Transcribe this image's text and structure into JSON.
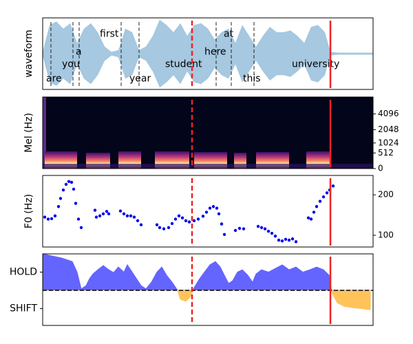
{
  "shared_x": {
    "xlim": [
      0,
      480
    ],
    "vlines": [
      {
        "x": 217,
        "style": "dashed"
      },
      {
        "x": 418,
        "style": "solid"
      }
    ],
    "color": "#ee2222"
  },
  "chart_data": [
    {
      "type": "waveform",
      "ylabel": "waveform",
      "color": "#a6c8e0",
      "ylim": [
        -1,
        1
      ],
      "x": [
        0,
        10,
        20,
        30,
        40,
        50,
        60,
        70,
        80,
        90,
        100,
        110,
        120,
        130,
        140,
        150,
        160,
        170,
        180,
        190,
        200,
        210,
        220,
        230,
        240,
        250,
        260,
        270,
        280,
        290,
        300,
        310,
        320,
        330,
        340,
        350,
        360,
        370,
        380,
        390,
        400,
        410,
        418,
        430,
        480
      ],
      "values": [
        0.05,
        0.8,
        0.9,
        0.7,
        0.85,
        0.3,
        0.7,
        0.85,
        0.6,
        0.2,
        0.05,
        0.1,
        0.7,
        0.6,
        0.1,
        0.2,
        0.5,
        0.95,
        0.8,
        0.6,
        0.85,
        0.5,
        0.8,
        0.85,
        0.7,
        0.4,
        0.6,
        0.7,
        0.3,
        0.8,
        0.5,
        0.2,
        0.5,
        0.75,
        0.6,
        0.6,
        0.65,
        0.5,
        0.3,
        0.75,
        0.8,
        0.6,
        0.05,
        0.03,
        0.03
      ],
      "boundaries": [
        12,
        44,
        53,
        114,
        140,
        252,
        274,
        307
      ],
      "words": [
        {
          "text": "are",
          "x": 5,
          "y": -0.7
        },
        {
          "text": "you",
          "x": 28,
          "y": -0.3
        },
        {
          "text": "a",
          "x": 48,
          "y": 0.05
        },
        {
          "text": "first",
          "x": 83,
          "y": 0.55
        },
        {
          "text": "year",
          "x": 126,
          "y": -0.7
        },
        {
          "text": "student",
          "x": 178,
          "y": -0.3
        },
        {
          "text": "here",
          "x": 235,
          "y": 0.05
        },
        {
          "text": "at",
          "x": 263,
          "y": 0.55
        },
        {
          "text": "this",
          "x": 291,
          "y": -0.7
        },
        {
          "text": "university",
          "x": 362,
          "y": -0.3
        }
      ]
    },
    {
      "type": "spectrogram",
      "ylabel": "Mel (Hz)",
      "yscale": "mel",
      "ylim": [
        0,
        8000
      ],
      "yticks": [
        0,
        512,
        1024,
        2048,
        4096
      ]
    },
    {
      "type": "scatter",
      "ylabel": "F0 (Hz)",
      "color": "#0000ee",
      "ylim": [
        71,
        248
      ],
      "yticks": [
        100,
        200
      ],
      "x": [
        3,
        8,
        13,
        18,
        23,
        26,
        30,
        34,
        38,
        42,
        45,
        48,
        52,
        56,
        76,
        78,
        83,
        88,
        93,
        96,
        113,
        118,
        123,
        128,
        133,
        138,
        143,
        166,
        170,
        176,
        183,
        188,
        193,
        198,
        203,
        208,
        213,
        220,
        226,
        233,
        238,
        243,
        248,
        253,
        256,
        260,
        264,
        280,
        286,
        292,
        313,
        318,
        323,
        328,
        333,
        338,
        343,
        348,
        353,
        358,
        363,
        368,
        386,
        390,
        394,
        398,
        403,
        408,
        413,
        417,
        422
      ],
      "values": [
        145,
        140,
        141,
        148,
        171,
        191,
        212,
        226,
        233,
        231,
        214,
        179,
        140,
        119,
        162,
        145,
        148,
        153,
        159,
        153,
        160,
        153,
        148,
        148,
        145,
        136,
        126,
        126,
        119,
        116,
        119,
        129,
        140,
        148,
        143,
        136,
        133,
        136,
        140,
        147,
        157,
        167,
        171,
        167,
        153,
        128,
        102,
        112,
        117,
        116,
        122,
        119,
        116,
        110,
        105,
        98,
        88,
        86,
        90,
        88,
        91,
        84,
        143,
        140,
        157,
        171,
        184,
        195,
        205,
        212,
        222
      ]
    },
    {
      "type": "area",
      "pos_color": "#6464ff",
      "neg_color": "#ffc35a",
      "ylim": [
        -1.92,
        2
      ],
      "hline": 0,
      "yticks": [
        {
          "value": 1,
          "label": "HOLD"
        },
        {
          "value": -1,
          "label": "SHIFT"
        }
      ],
      "x": [
        0,
        13,
        28,
        43,
        50,
        56,
        63,
        68,
        73,
        80,
        88,
        96,
        103,
        110,
        118,
        123,
        133,
        143,
        150,
        158,
        166,
        173,
        180,
        188,
        196,
        200,
        208,
        214,
        220,
        228,
        235,
        243,
        251,
        258,
        264,
        270,
        276,
        283,
        290,
        298,
        305,
        310,
        318,
        328,
        338,
        348,
        358,
        368,
        378,
        388,
        398,
        408,
        416,
        420,
        428,
        438,
        448,
        458,
        468,
        476
      ],
      "values": [
        2,
        1.89,
        1.77,
        1.58,
        1,
        0.08,
        0.26,
        0.64,
        0.9,
        1.13,
        1.36,
        1.13,
        0.98,
        1.28,
        1,
        1.4,
        0.83,
        0.26,
        0.08,
        0.45,
        1,
        1.28,
        0.83,
        0.45,
        0,
        -0.49,
        -0.6,
        -0.38,
        0.15,
        0.64,
        1,
        1.4,
        1.58,
        1.28,
        0.83,
        0.38,
        0.53,
        1,
        1.13,
        0.83,
        0.45,
        0.9,
        1.13,
        1,
        1.2,
        1.4,
        1.13,
        1.28,
        1,
        1.13,
        1.28,
        1.13,
        0.83,
        -0.11,
        -0.68,
        -0.87,
        -0.94,
        -0.98,
        -1.02,
        -1.06
      ]
    }
  ]
}
